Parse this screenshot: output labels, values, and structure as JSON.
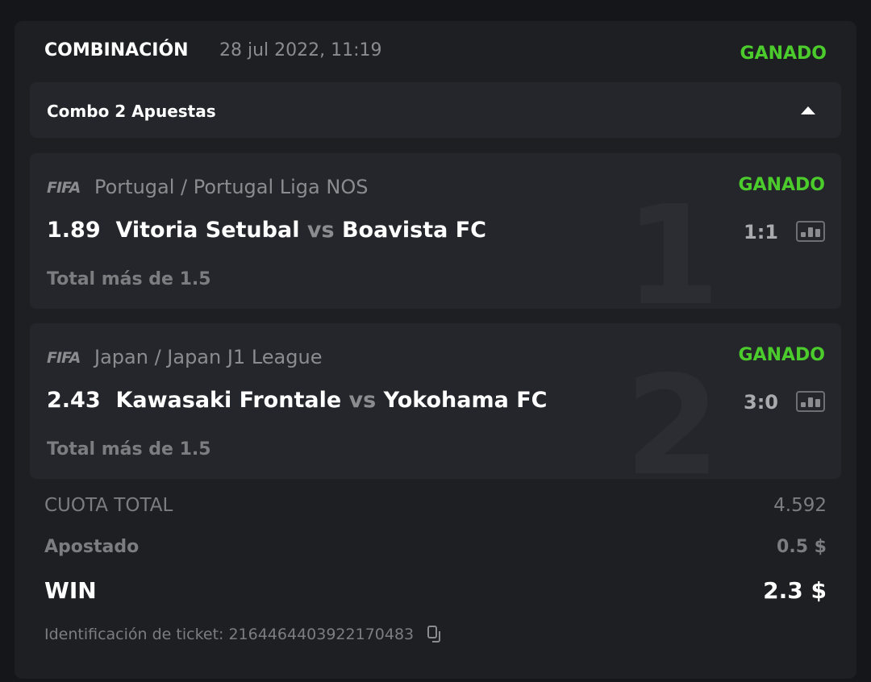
{
  "header": {
    "type": "COMBINACIÓN",
    "date": "28 jul 2022, 11:19",
    "status": "GANADO"
  },
  "combo": {
    "label": "Combo 2 Apuestas"
  },
  "bets": [
    {
      "index": "1",
      "sport_logo": "FIFA",
      "league": "Portugal / Portugal Liga NOS",
      "status": "GANADO",
      "odds": "1.89",
      "home": "Vitoria Setubal",
      "vs": "vs",
      "away": "Boavista FC",
      "score": "1:1",
      "market": "Total más de 1.5"
    },
    {
      "index": "2",
      "sport_logo": "FIFA",
      "league": "Japan / Japan J1 League",
      "status": "GANADO",
      "odds": "2.43",
      "home": "Kawasaki Frontale",
      "vs": "vs",
      "away": "Yokohama FC",
      "score": "3:0",
      "market": "Total más de 1.5"
    }
  ],
  "summary": {
    "total_odds_label": "CUOTA TOTAL",
    "total_odds": "4.592",
    "stake_label": "Apostado",
    "stake": "0.5 $",
    "win_label": "WIN",
    "win": "2.3 $",
    "ticket_label": "Identificación de ticket:",
    "ticket_id": "2164464403922170483"
  },
  "colors": {
    "won": "#4ccc2c",
    "bg": "#1e1f23"
  }
}
